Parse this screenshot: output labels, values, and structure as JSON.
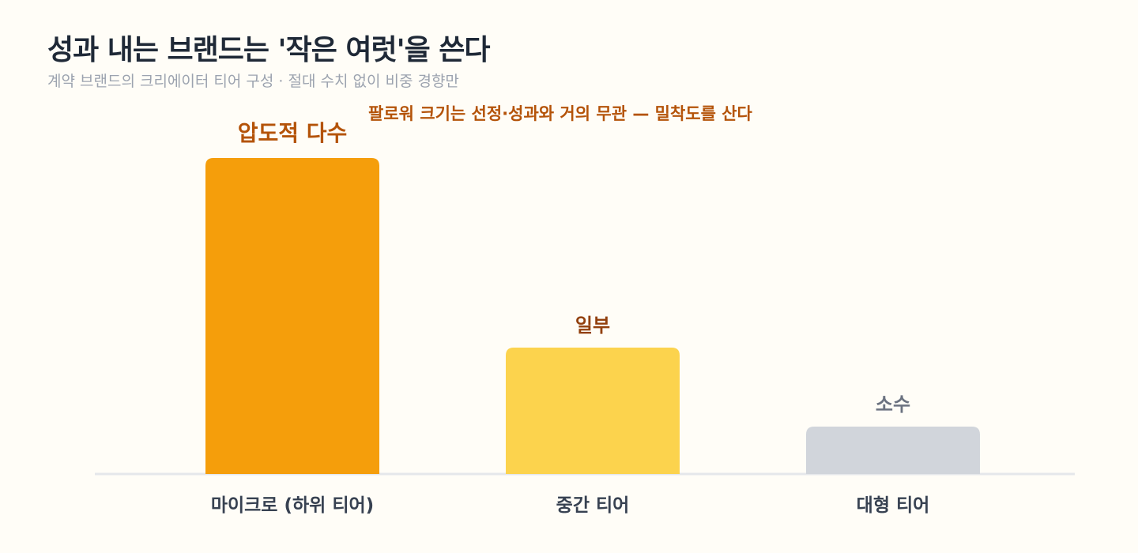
{
  "header": {
    "title": "성과 내는 브랜드는 '작은 여럿'을 쓴다",
    "subtitle": "계약 브랜드의 크리에이터 티어 구성 · 절대 수치 없이 비중 경향만"
  },
  "annotation": "팔로워 크기는 선정·성과와 거의 무관 — 밀착도를 산다",
  "colors": {
    "background": "#fffdf7",
    "baseline": "#e5e7eb"
  },
  "chart_data": {
    "type": "bar",
    "title": "성과 내는 브랜드는 '작은 여럿'을 쓴다",
    "subtitle": "계약 브랜드의 크리에이터 티어 구성 · 절대 수치 없이 비중 경향만",
    "categories": [
      "마이크로 (하위 티어)",
      "중간 티어",
      "대형 티어"
    ],
    "values": [
      10,
      4,
      1.5
    ],
    "value_note": "relative shares only; the chart prints no numeric values or axis",
    "data_labels": [
      "압도적 다수",
      "일부",
      "소수"
    ],
    "bar_colors": [
      "#f59e0b",
      "#fcd34d",
      "#d1d5db"
    ],
    "label_colors": [
      "#b45309",
      "#92400e",
      "#6b7280"
    ],
    "ylim": [
      0,
      10
    ],
    "grid": false,
    "legend": "none"
  }
}
